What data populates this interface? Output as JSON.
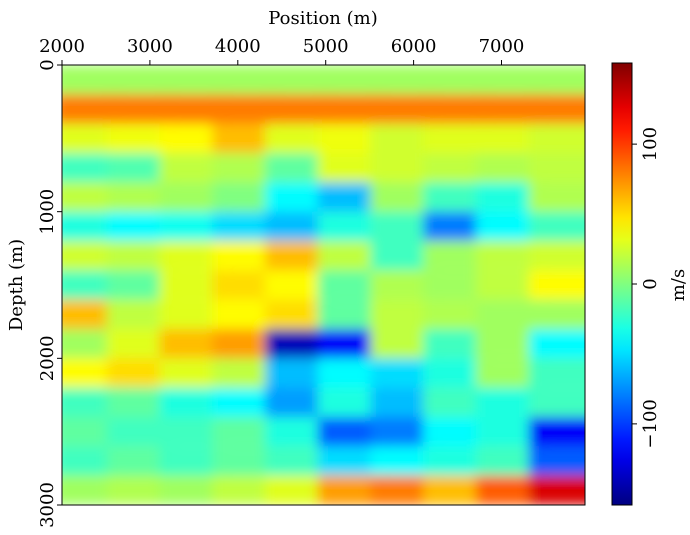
{
  "chart_data": {
    "type": "heatmap",
    "xlabel": "Position (m)",
    "ylabel": "Depth (m)",
    "colorbar_label": "m/s",
    "colorscale": "jet",
    "x": [
      2300,
      2900,
      3500,
      4100,
      4700,
      5300,
      5900,
      6500,
      7100,
      7700
    ],
    "y": [
      100,
      300,
      500,
      700,
      900,
      1100,
      1300,
      1500,
      1700,
      1900,
      2100,
      2300,
      2500,
      2700,
      2900
    ],
    "values": [
      [
        10,
        10,
        10,
        10,
        10,
        10,
        10,
        10,
        10,
        10
      ],
      [
        80,
        80,
        80,
        80,
        80,
        80,
        80,
        80,
        80,
        80
      ],
      [
        30,
        35,
        40,
        60,
        30,
        35,
        25,
        30,
        30,
        25
      ],
      [
        -20,
        -15,
        20,
        15,
        -10,
        30,
        25,
        20,
        15,
        20
      ],
      [
        20,
        15,
        10,
        0,
        -40,
        -60,
        10,
        -20,
        -30,
        15
      ],
      [
        -30,
        -40,
        -35,
        -50,
        -60,
        -30,
        -20,
        -80,
        -40,
        -20
      ],
      [
        25,
        20,
        30,
        40,
        60,
        20,
        -20,
        10,
        20,
        25
      ],
      [
        -20,
        -10,
        30,
        50,
        40,
        -10,
        15,
        10,
        20,
        40
      ],
      [
        60,
        20,
        30,
        40,
        50,
        -10,
        20,
        15,
        10,
        10
      ],
      [
        10,
        30,
        60,
        70,
        -140,
        -120,
        20,
        -20,
        10,
        -40
      ],
      [
        40,
        50,
        30,
        20,
        -60,
        -40,
        -50,
        -30,
        10,
        -20
      ],
      [
        -20,
        -10,
        -30,
        -40,
        -70,
        -30,
        -60,
        -20,
        -30,
        -20
      ],
      [
        -10,
        -20,
        -20,
        -10,
        -30,
        -90,
        -80,
        -40,
        -30,
        -120
      ],
      [
        -20,
        -10,
        -20,
        -10,
        -20,
        -50,
        -40,
        -30,
        -20,
        -90
      ],
      [
        10,
        15,
        10,
        20,
        30,
        70,
        80,
        60,
        90,
        130
      ]
    ],
    "xlim": [
      2000,
      7950
    ],
    "ylim": [
      3000,
      0
    ],
    "clim": [
      -158,
      158
    ],
    "xticks": [
      2000,
      3000,
      4000,
      5000,
      6000,
      7000
    ],
    "yticks": [
      0,
      1000,
      2000,
      3000
    ],
    "cticks": [
      {
        "value": -100,
        "label": "−100"
      },
      0,
      100
    ]
  }
}
